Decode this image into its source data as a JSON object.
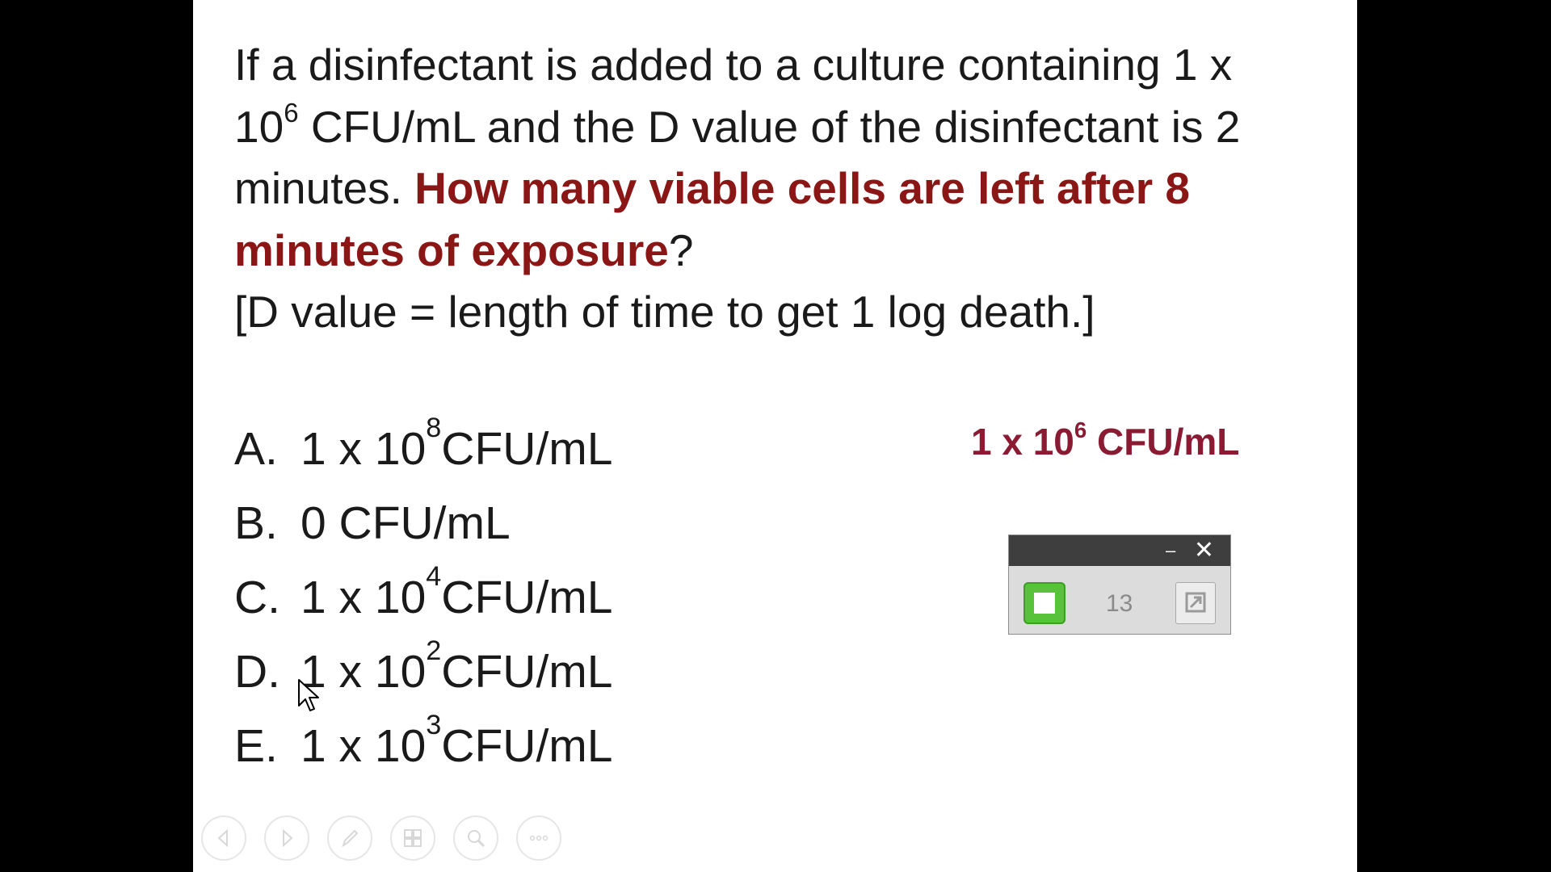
{
  "question": {
    "intro": "If a disinfectant is added to a culture containing 1 x 10",
    "intro_exp": "6",
    "intro_rest": " CFU/mL and the D value of the disinfectant is 2 minutes. ",
    "emphasis": "How many viable cells are left after 8 minutes of exposure",
    "question_mark": "?",
    "note": "[D value = length of time to get 1 log death.]"
  },
  "options": [
    {
      "letter": "A.",
      "base": "1 x 10",
      "exp": "8",
      "unit": " CFU/mL"
    },
    {
      "letter": "B.",
      "base": "0 CFU/mL",
      "exp": "",
      "unit": ""
    },
    {
      "letter": "C.",
      "base": "1 x 10",
      "exp": "4",
      "unit": " CFU/mL"
    },
    {
      "letter": "D.",
      "base": "1 x 10",
      "exp": "2",
      "unit": " CFU/mL"
    },
    {
      "letter": "E.",
      "base": "1 x 10",
      "exp": "3",
      "unit": " CFU/mL"
    }
  ],
  "answer": {
    "base": "1 x 10",
    "exp": "6",
    "unit": " CFU/mL"
  },
  "timer": {
    "count": "13",
    "minimize": "–",
    "close": "✕"
  },
  "toolbar": [
    "previous-icon",
    "next-icon",
    "pen-icon",
    "slides-icon",
    "zoom-icon",
    "more-icon"
  ],
  "colors": {
    "emphasis": "#8b1616",
    "answer": "#8b1a33",
    "timer_green": "#58c23a"
  }
}
